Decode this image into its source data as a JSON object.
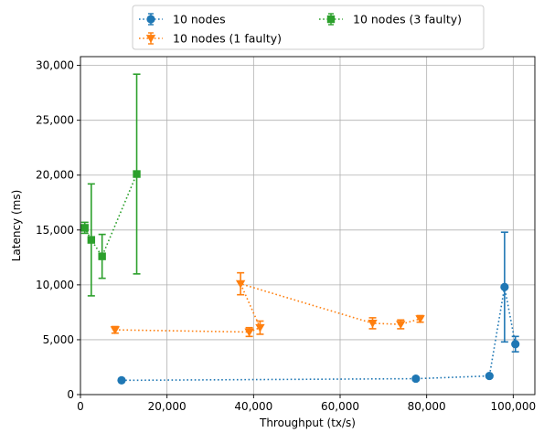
{
  "chart_data": {
    "type": "scatter",
    "title": "",
    "xlabel": "Throughput (tx/s)",
    "ylabel": "Latency (ms)",
    "xlim": [
      0,
      105000
    ],
    "ylim": [
      0,
      30800
    ],
    "xticks": [
      0,
      20000,
      40000,
      60000,
      80000,
      100000
    ],
    "xtick_labels": [
      "0",
      "20,000",
      "40,000",
      "60,000",
      "80,000",
      "100,000"
    ],
    "yticks": [
      0,
      5000,
      10000,
      15000,
      20000,
      25000,
      30000
    ],
    "ytick_labels": [
      "0",
      "5,000",
      "10,000",
      "15,000",
      "20,000",
      "25,000",
      "30,000"
    ],
    "grid": true,
    "legend_position": "top-center, outside plot",
    "series": [
      {
        "name": "10 nodes",
        "color": "#1f77b4",
        "marker": "circle",
        "points": [
          {
            "x": 9500,
            "y": 1300,
            "err": 0
          },
          {
            "x": 77500,
            "y": 1450,
            "err": 0
          },
          {
            "x": 94500,
            "y": 1700,
            "err": 0
          },
          {
            "x": 98000,
            "y": 9800,
            "err": 5000
          },
          {
            "x": 100500,
            "y": 4600,
            "err": 700
          }
        ]
      },
      {
        "name": "10 nodes (1 faulty)",
        "color": "#ff7f0e",
        "marker": "triangle-down",
        "points": [
          {
            "x": 8000,
            "y": 5900,
            "err": 300
          },
          {
            "x": 39000,
            "y": 5700,
            "err": 400
          },
          {
            "x": 41500,
            "y": 6100,
            "err": 600
          },
          {
            "x": 37000,
            "y": 10100,
            "err": 1000
          },
          {
            "x": 67500,
            "y": 6500,
            "err": 500
          },
          {
            "x": 74000,
            "y": 6400,
            "err": 400
          },
          {
            "x": 78500,
            "y": 6900,
            "err": 300
          }
        ]
      },
      {
        "name": "10 nodes (3 faulty)",
        "color": "#2ca02c",
        "marker": "square",
        "points": [
          {
            "x": 1000,
            "y": 15200,
            "err": 500
          },
          {
            "x": 2500,
            "y": 14100,
            "err": 5100
          },
          {
            "x": 5000,
            "y": 12600,
            "err": 2000
          },
          {
            "x": 13000,
            "y": 20100,
            "err": 9100
          }
        ]
      }
    ]
  }
}
